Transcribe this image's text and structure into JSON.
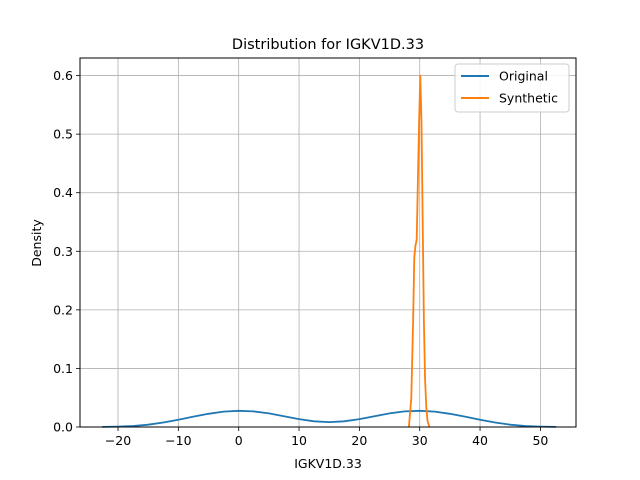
{
  "chart_data": {
    "type": "line",
    "title": "Distribution for IGKV1D.33",
    "xlabel": "IGKV1D.33",
    "ylabel": "Density",
    "xlim": [
      -26.3,
      55.9
    ],
    "ylim": [
      0,
      0.63
    ],
    "xticks": [
      -20,
      -10,
      0,
      10,
      20,
      30,
      40,
      50
    ],
    "yticks": [
      0.0,
      0.1,
      0.2,
      0.3,
      0.4,
      0.5,
      0.6
    ],
    "xtick_labels": [
      "−20",
      "−10",
      "0",
      "10",
      "20",
      "30",
      "40",
      "50"
    ],
    "ytick_labels": [
      "0.0",
      "0.1",
      "0.2",
      "0.3",
      "0.4",
      "0.5",
      "0.6"
    ],
    "grid": true,
    "legend": "top-right",
    "series": [
      {
        "name": "Original",
        "color": "#1f77b4",
        "x": [
          -22.6,
          -20,
          -17.5,
          -15,
          -12.5,
          -10,
          -7.5,
          -5,
          -2.5,
          0,
          2.5,
          5,
          7.5,
          10,
          12.5,
          15,
          17.5,
          20,
          22.5,
          25,
          27.5,
          30,
          32.5,
          35,
          37.5,
          40,
          42.5,
          45,
          47.5,
          50,
          52.6
        ],
        "y": [
          0.0001,
          0.0006,
          0.0017,
          0.004,
          0.0077,
          0.0125,
          0.0178,
          0.0225,
          0.0263,
          0.0277,
          0.0266,
          0.0232,
          0.0185,
          0.0135,
          0.0097,
          0.0083,
          0.0097,
          0.0135,
          0.0185,
          0.0232,
          0.0266,
          0.0277,
          0.0263,
          0.0225,
          0.0178,
          0.0125,
          0.0077,
          0.004,
          0.0017,
          0.0006,
          0.0001
        ]
      },
      {
        "name": "Synthetic",
        "color": "#ff7f0e",
        "x": [
          28.2,
          28.6,
          28.9,
          29.1,
          29.3,
          29.5,
          29.7,
          29.9,
          30.1,
          30.3,
          30.5,
          30.7,
          30.9,
          31.1,
          31.3,
          31.6
        ],
        "y": [
          0.0,
          0.05,
          0.18,
          0.29,
          0.31,
          0.32,
          0.42,
          0.52,
          0.6,
          0.52,
          0.35,
          0.18,
          0.08,
          0.03,
          0.01,
          0.0
        ]
      }
    ]
  }
}
